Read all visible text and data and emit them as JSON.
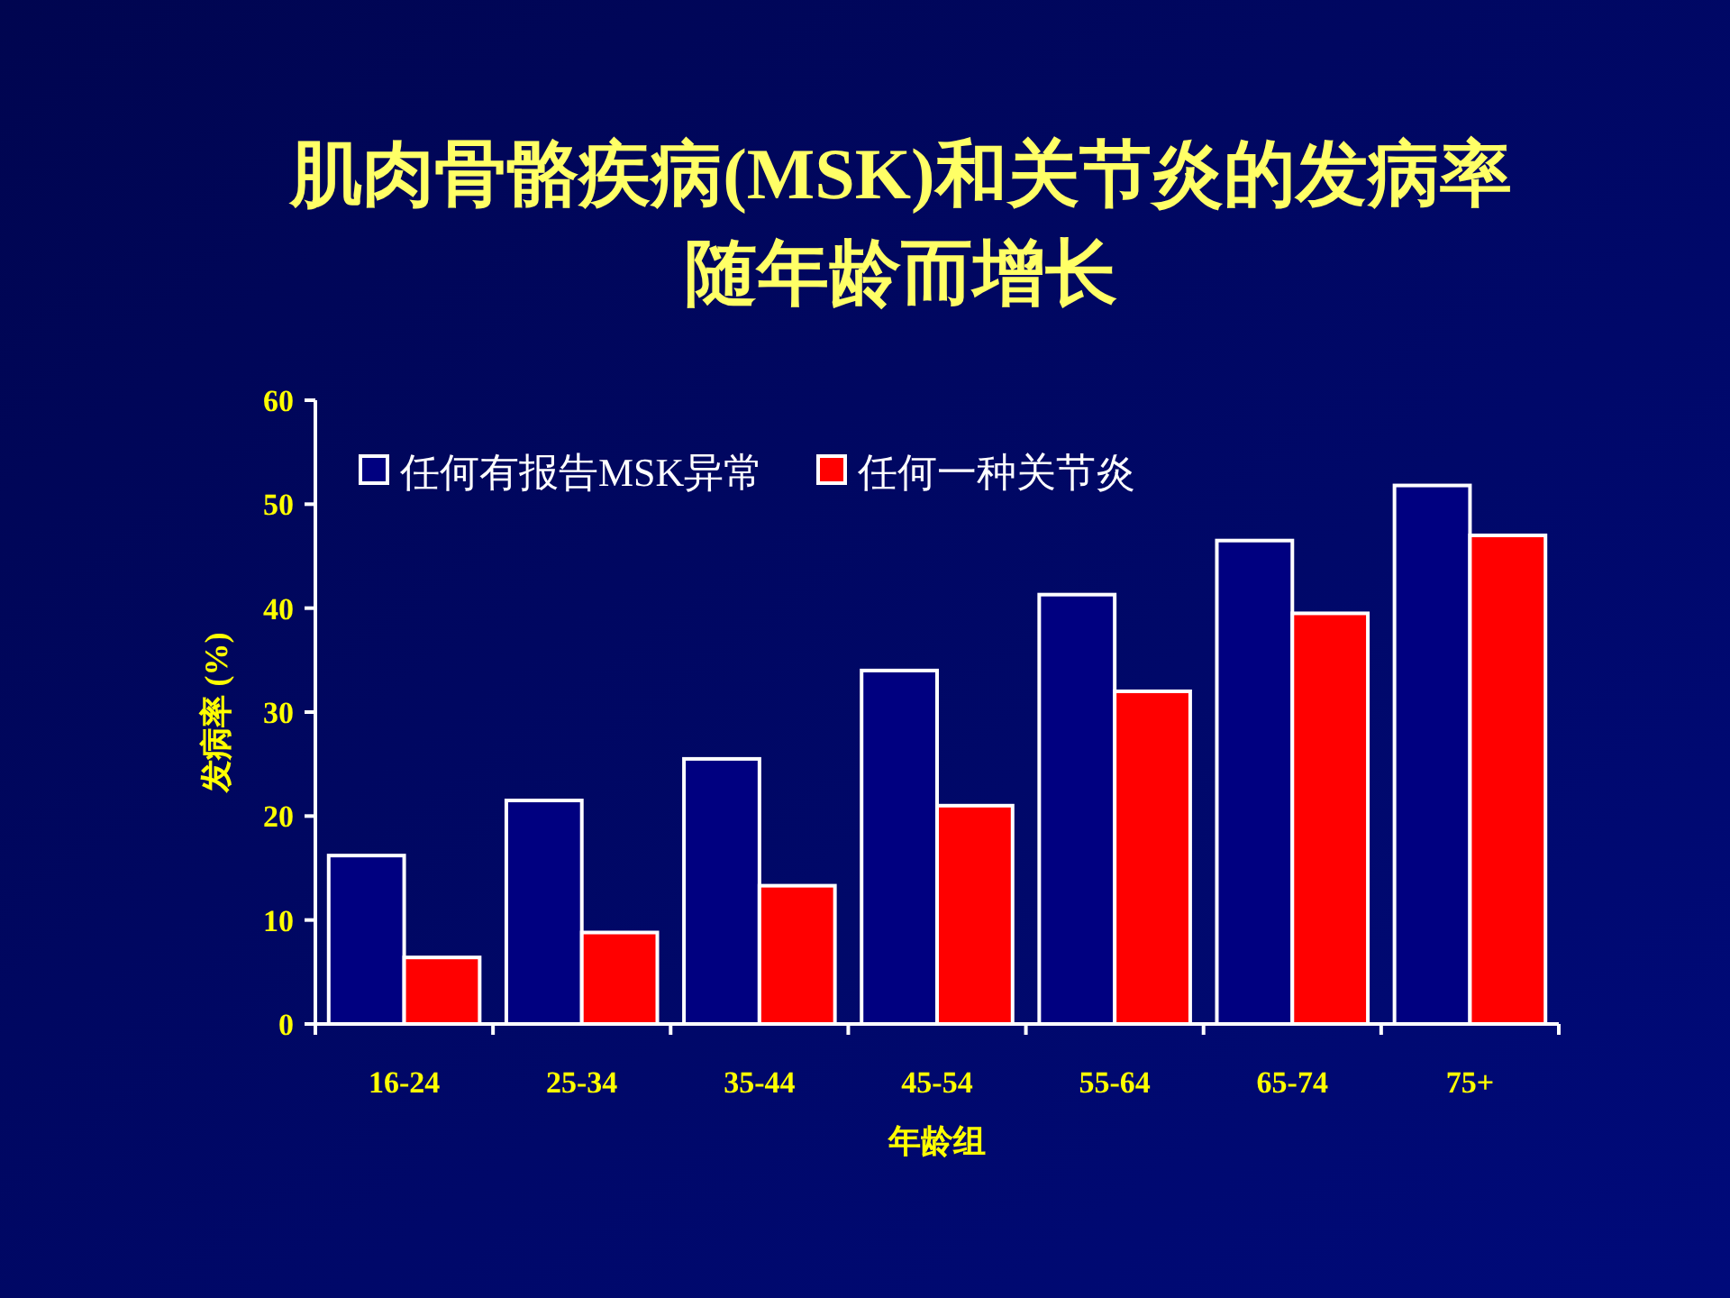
{
  "chart_data": {
    "type": "bar",
    "title": "肌肉骨骼疾病(MSK)和关节炎的发病率",
    "subtitle": "随年龄而增长",
    "xlabel": "年龄组",
    "ylabel": "发病率 (%)",
    "categories": [
      "16-24",
      "25-34",
      "35-44",
      "45-54",
      "55-64",
      "65-74",
      "75+"
    ],
    "series": [
      {
        "name": "任何有报告MSK异常",
        "color": "#000080",
        "values": [
          16.2,
          21.5,
          25.5,
          34,
          41.3,
          46.5,
          51.8
        ]
      },
      {
        "name": "任何一种关节炎",
        "color": "#ff0000",
        "values": [
          6.4,
          8.8,
          13.3,
          21,
          32,
          39.5,
          47
        ]
      }
    ],
    "ylim": [
      0,
      60
    ],
    "yticks": [
      0,
      10,
      20,
      30,
      40,
      50,
      60
    ],
    "legend": "top left"
  }
}
